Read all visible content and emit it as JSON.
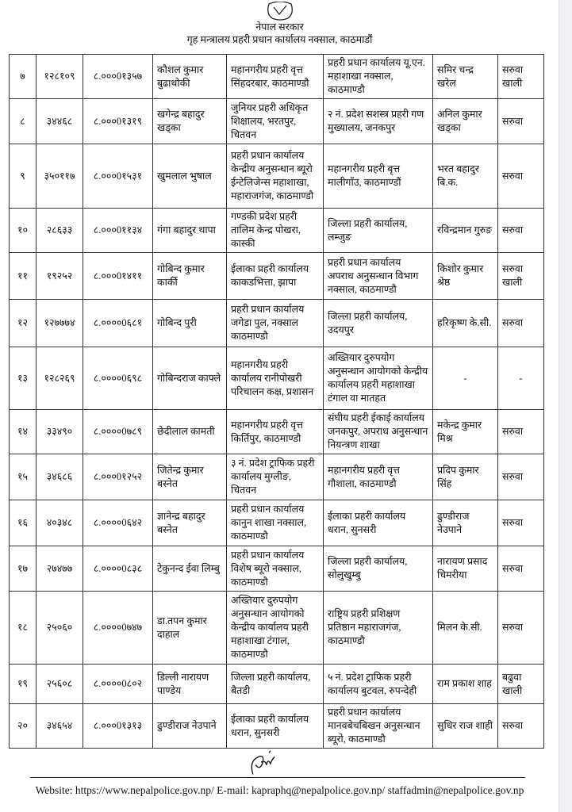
{
  "stamp": {
    "text_top": "नेपाल सरकार",
    "text_body": "गृह मन्त्रालय प्रहरी प्रधान कार्यालय नक्साल, काठमाडौं"
  },
  "rows": [
    {
      "sn": "७",
      "id": "१२८१०९",
      "code": "८.०००0१३५७",
      "name": "कौशल कुमार बुढाथोकी",
      "from": "महानगरीय प्रहरी वृत्त सिंहदरबार, काठमाण्डौ",
      "to": "प्रहरी प्रधान कार्यालय यू.एन. महाशाखा नक्साल, काठमाण्डौ",
      "replacement": "समिर चन्द्र खरेल",
      "remark": "सरुवा खाली"
    },
    {
      "sn": "८",
      "id": "३४४६८",
      "code": "८.०००0१३१९",
      "name": "खगेन्द्र बहादुर खड्का",
      "from": "जुनियर प्रहरी अधिकृत शिक्षालय, भरतपुर, चितवन",
      "to": "२ नं. प्रदेश सशस्त्र प्रहरी गण मुख्यालय, जनकपुर",
      "replacement": "अनिल कुमार खड्का",
      "remark": "सरुवा"
    },
    {
      "sn": "९",
      "id": "३५०११७",
      "code": "८.०००0१५३१",
      "name": "खुमलाल भुषाल",
      "from": "प्रहरी प्रधान कार्यालय केन्द्रीय अनुसन्धान ब्यूरो ईन्टेलिजेन्स महाशाखा, महाराजगंज, काठमाण्डौ",
      "to": "महानगरीय प्रहरी बृत्त मालीगाँउ, काठमाण्डौं",
      "replacement": "भरत बहादुर बि.क.",
      "remark": "सरुवा"
    },
    {
      "sn": "१०",
      "id": "२८६३३",
      "code": "८.०००0११३४",
      "name": "गंगा बहादुर थापा",
      "from": "गण्डकी प्रदेश प्रहरी तालिम केन्द्र पोखरा, कास्की",
      "to": "जिल्ला प्रहरी कार्यालय, लम्जुङ",
      "replacement": "रविन्द्रमान गुरुङ",
      "remark": "सरुवा"
    },
    {
      "sn": "११",
      "id": "१९२५२",
      "code": "८.०००0१४११",
      "name": "गोबिन्द कुमार कार्की",
      "from": "ईलाका प्रहरी कार्यालय काकडभित्ता, झापा",
      "to": "प्रहरी प्रधान कार्यालय अपराध अनुसन्धान विभाग नक्साल, काठमाण्डौ",
      "replacement": "किशोर कुमार श्रेष्ठ",
      "remark": "सरुवा खाली"
    },
    {
      "sn": "१२",
      "id": "१२७७७४",
      "code": "८.००००0६८१",
      "name": "गोबिन्द पुरी",
      "from": "प्रहरी प्रधान कार्यालय जगेडा पुल, नक्साल काठमाण्डौ",
      "to": "जिल्ला प्रहरी कार्यालय, उदयपुर",
      "replacement": "हरिकृष्ण के.सी.",
      "remark": "सरुवा"
    },
    {
      "sn": "१३",
      "id": "१२८२६९",
      "code": "८.००००0६९८",
      "name": "गोबिन्दराज काफ्ले",
      "from": "महानगरीय प्रहरी कार्यालय रानीपोखरी परिचालन कक्ष, प्रशासन",
      "to": "अख्तियार दुरुपयोग अनुसन्धान आयोगको केन्द्रीय कार्यालय प्रहरी महाशाखा टंगाल वा मातहत",
      "replacement": "-",
      "remark": "-"
    },
    {
      "sn": "१४",
      "id": "३३४९०",
      "code": "८.००००0७८९",
      "name": "छेदीलाल कामती",
      "from": "महानगरीय प्रहरी वृत्त किर्तिपुर, काठमाण्डौ",
      "to": "संघीय प्रहरी ईकाई कार्यालय जनकपुर, अपराध अनुसन्धान नियन्त्रण शाखा",
      "replacement": "मकेन्द्र कुमार मिश्र",
      "remark": "सरुवा"
    },
    {
      "sn": "१५",
      "id": "३४६८६",
      "code": "८.०००0१२५२",
      "name": "जितेन्द्र कुमार बस्नेत",
      "from": "३ नं. प्रदेश ट्राफिक प्रहरी कार्यालय मुग्लीङ, चितवन",
      "to": "महानगरीय प्रहरी वृत्त गौशाला, काठमाण्डौ",
      "replacement": "प्रदिप कुमार सिंह",
      "remark": "सरुवा"
    },
    {
      "sn": "१६",
      "id": "४०३४८",
      "code": "८.००००0६४२",
      "name": "ज्ञानेन्द्र बहादुर बस्नेत",
      "from": "प्रहरी प्रधान कार्यालय कानुन शाखा नक्साल, काठमाण्डौ",
      "to": "ईलाका प्रहरी कार्यालय धरान, सुनसरी",
      "replacement": "ढुण्डीराज नेउपाने",
      "remark": "सरुवा"
    },
    {
      "sn": "१७",
      "id": "२७४७७",
      "code": "८.००००0८३८",
      "name": "टेकुनन्द ईवा लिम्बु",
      "from": "प्रहरी प्रधान कार्यालय विशेष ब्यूरो नक्साल, काठमाण्डौ",
      "to": "जिल्ला प्रहरी कार्यालय, सोलुखुम्बु",
      "replacement": "नारायण प्रसाद चिमरीया",
      "remark": "सरुवा"
    },
    {
      "sn": "१८",
      "id": "२५०६०",
      "code": "८.००००0७४७",
      "name": "डा.तपन कुमार दाहाल",
      "from": "अख्तियार दुरुपयोग अनुसन्धान आयोगको केन्द्रीय कार्यालय प्रहरी महाशाखा टंगाल, काठमाण्डौ",
      "to": "राष्ट्रिय प्रहरी प्रशिक्षण प्रतिष्ठान महाराजगंज, काठमाण्डौ",
      "replacement": "मिलन के.सी.",
      "remark": "सरुवा"
    },
    {
      "sn": "१९",
      "id": "२५६०८",
      "code": "८.००००0८०२",
      "name": "डिल्ली नारायण पाण्डेय",
      "from": "जिल्ला प्रहरी कार्यालय, बैतडी",
      "to": "५ नं. प्रदेश ट्राफिक प्रहरी कार्यालय बुटवल, रुपन्देही",
      "replacement": "राम प्रकाश शाह",
      "remark": "बढुवा खाली"
    },
    {
      "sn": "२०",
      "id": "३४६५४",
      "code": "८.०००0१३१३",
      "name": "ढुण्डीराज नेउपाने",
      "from": "ईलाका प्रहरी कार्यालय धरान, सुनसरी",
      "to": "प्रहरी प्रधान कार्यालय मानवबेचबिखन अनुसन्धान ब्यूरो, काठमाण्डौ",
      "replacement": "सुधिर राज शाही",
      "remark": "सरुवा"
    }
  ],
  "footer": {
    "text": "Website: https://www.nepalpolice.gov.np/ E-mail: kapraphq@nepalpolice.gov.np/ staffadmin@nepalpolice.gov.np"
  }
}
